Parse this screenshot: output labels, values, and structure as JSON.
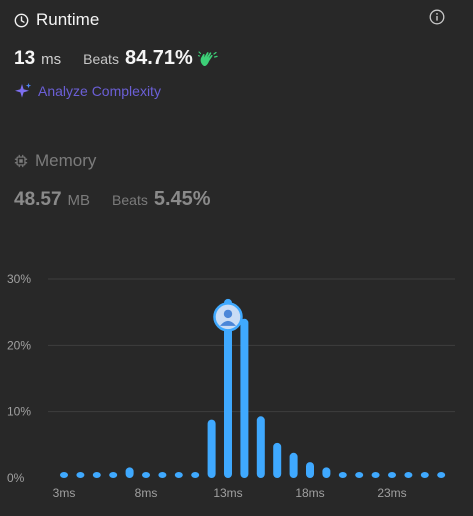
{
  "runtime": {
    "title": "Runtime",
    "value": "13",
    "unit": "ms",
    "beats_label": "Beats",
    "beats_value": "84.71%"
  },
  "analyze": {
    "label": "Analyze Complexity"
  },
  "memory": {
    "title": "Memory",
    "value": "48.57",
    "unit": "MB",
    "beats_label": "Beats",
    "beats_value": "5.45%"
  },
  "icons": {
    "runtime": "clock-icon",
    "info": "info-icon",
    "beats": "waving-hand-icon",
    "analyze": "sparkle-icon",
    "memory": "chip-icon",
    "marker": "user-avatar-icon"
  },
  "colors": {
    "background": "#282828",
    "bar": "#3fa9ff",
    "accent_purple": "#6b5fd6",
    "wave_green": "#3ccf77",
    "grid": "#3e3e3e",
    "marker_fill": "#c9dcf5"
  },
  "chart_data": {
    "type": "bar",
    "x_tick_labels": [
      "3ms",
      "8ms",
      "13ms",
      "18ms",
      "23ms"
    ],
    "x_ticks": [
      3,
      8,
      13,
      18,
      23
    ],
    "x": [
      3,
      4,
      5,
      6,
      7,
      8,
      9,
      10,
      11,
      12,
      13,
      14,
      15,
      16,
      17,
      18,
      19,
      20,
      21,
      22,
      23,
      24,
      25,
      26
    ],
    "values": [
      0.9,
      0.9,
      0.9,
      0.9,
      1.6,
      0.9,
      0.9,
      0.9,
      0.9,
      8.8,
      27,
      24,
      9.3,
      5.3,
      3.8,
      2.4,
      1.6,
      0.9,
      0.9,
      0.9,
      0.9,
      0.9,
      0.9,
      0.9
    ],
    "y_tick_labels": [
      "0%",
      "10%",
      "20%",
      "30%"
    ],
    "y_ticks": [
      0,
      10,
      20,
      30
    ],
    "ylim": [
      0,
      30
    ],
    "highlight_x": 13,
    "grid": true,
    "xlabel": "",
    "ylabel": ""
  }
}
